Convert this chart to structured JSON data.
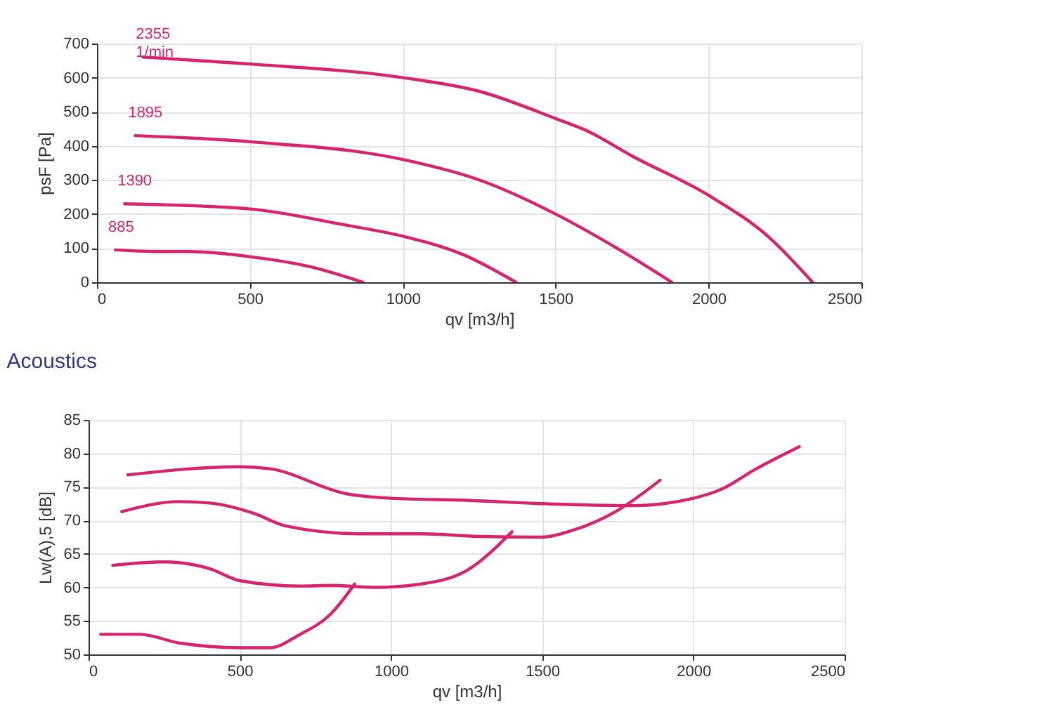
{
  "chart_data": [
    {
      "type": "line",
      "xlabel": "qv [m3/h]",
      "ylabel": "psF [Pa]",
      "xlim": [
        0,
        2500
      ],
      "ylim": [
        0,
        700
      ],
      "xticks": [
        0,
        500,
        1000,
        1500,
        2000,
        2500
      ],
      "yticks": [
        0,
        100,
        200,
        300,
        400,
        500,
        600,
        700
      ],
      "grid": true,
      "series": [
        {
          "name": "2355\n1/min",
          "color": "#d6246e",
          "x": [
            150,
            500,
            1000,
            1250,
            1500,
            1600,
            1750,
            2000,
            2200,
            2340
          ],
          "values": [
            660,
            640,
            600,
            560,
            480,
            445,
            370,
            255,
            130,
            0
          ]
        },
        {
          "name": "1895",
          "color": "#d6246e",
          "x": [
            125,
            500,
            1000,
            1250,
            1500,
            1700,
            1880
          ],
          "values": [
            430,
            412,
            360,
            300,
            200,
            100,
            0
          ]
        },
        {
          "name": "1390",
          "color": "#d6246e",
          "x": [
            90,
            500,
            800,
            1000,
            1200,
            1370
          ],
          "values": [
            230,
            215,
            170,
            135,
            80,
            0
          ]
        },
        {
          "name": "885",
          "color": "#d6246e",
          "x": [
            60,
            200,
            300,
            500,
            700,
            800,
            870
          ],
          "values": [
            95,
            90,
            90,
            75,
            45,
            20,
            0
          ]
        }
      ]
    },
    {
      "type": "line",
      "title": "Acoustics",
      "xlabel": "qv [m3/h]",
      "ylabel": "Lw(A),5 [dB]",
      "xlim": [
        0,
        2500
      ],
      "ylim": [
        50,
        85
      ],
      "xticks": [
        0,
        500,
        1000,
        1500,
        2000,
        2500
      ],
      "yticks": [
        50,
        55,
        60,
        65,
        70,
        75,
        80,
        85
      ],
      "grid": true,
      "series": [
        {
          "color": "#d6246e",
          "x": [
            40,
            170,
            300,
            500,
            600,
            700,
            800,
            880
          ],
          "values": [
            53,
            53,
            51.7,
            51,
            51,
            53,
            56,
            60.5
          ]
        },
        {
          "color": "#d6246e",
          "x": [
            80,
            250,
            400,
            500,
            700,
            800,
            950,
            1100,
            1250,
            1400
          ],
          "values": [
            63.3,
            63.8,
            62.8,
            61,
            60.2,
            60.3,
            60,
            60.5,
            62.5,
            68.3
          ]
        },
        {
          "color": "#d6246e",
          "x": [
            110,
            300,
            400,
            550,
            650,
            900,
            1100,
            1300,
            1500,
            1600,
            1750,
            1890
          ],
          "values": [
            71.3,
            72.8,
            72.6,
            71,
            69.2,
            68,
            68,
            67.6,
            67.5,
            68.5,
            71.5,
            76
          ]
        },
        {
          "color": "#d6246e",
          "x": [
            130,
            500,
            600,
            850,
            1000,
            1250,
            1500,
            1800,
            2000,
            2100,
            2200,
            2350
          ],
          "values": [
            76.8,
            78,
            77.7,
            74,
            73.3,
            73,
            72.5,
            72.2,
            73.3,
            74.8,
            77.5,
            81
          ]
        }
      ]
    }
  ]
}
